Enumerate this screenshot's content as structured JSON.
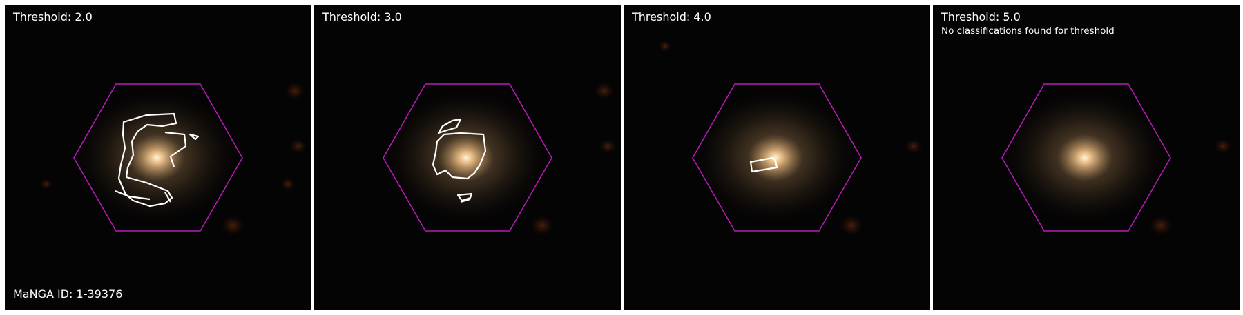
{
  "panels": [
    {
      "threshold_label": "Threshold: 2.0",
      "message": "",
      "footer": "MaNGA ID: 1-39376"
    },
    {
      "threshold_label": "Threshold: 3.0",
      "message": "",
      "footer": ""
    },
    {
      "threshold_label": "Threshold: 4.0",
      "message": "",
      "footer": ""
    },
    {
      "threshold_label": "Threshold: 5.0",
      "message": "No classifications found for threshold",
      "footer": ""
    }
  ],
  "colors": {
    "hexagon": "#b51bb5",
    "contour": "#ffffff",
    "galaxy_core": "#ffe6b8",
    "background": "#050404"
  }
}
